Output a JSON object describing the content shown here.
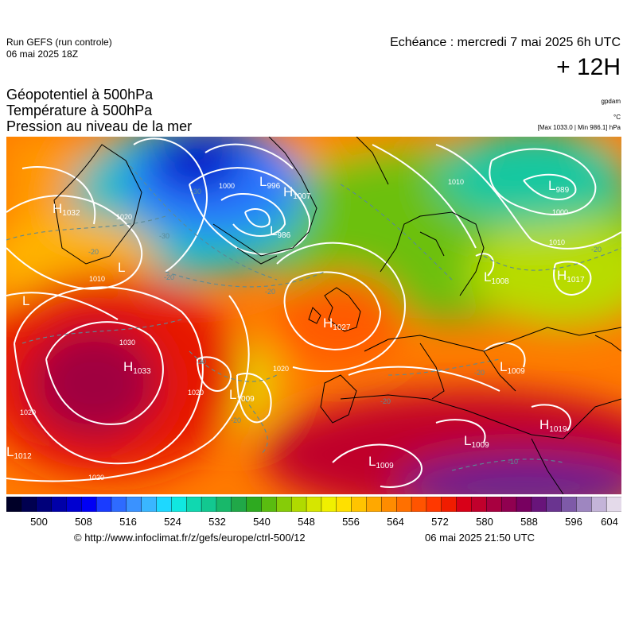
{
  "header": {
    "run_name": "Run GEFS (run controle)",
    "run_date": "06 mai 2025 18Z",
    "echeance": "Echéance : mercredi 7 mai 2025 6h UTC",
    "lead_time": "+ 12H"
  },
  "titles": {
    "line1": "Géopotentiel à 500hPa",
    "line2": "Température à 500hPa",
    "line3": "Pression au niveau de la mer"
  },
  "units": {
    "geopotential": "gpdam",
    "temperature": "°C",
    "pressure": "[Max 1033.0 | Min 986.1] hPa"
  },
  "colors": {
    "palette": [
      "#000028",
      "#000050",
      "#00007a",
      "#0000a8",
      "#0000d0",
      "#0000f5",
      "#1a3cff",
      "#2e6bff",
      "#3a92ff",
      "#3ab6ff",
      "#1ed8ff",
      "#10e8e0",
      "#10d8b0",
      "#12c890",
      "#18b86a",
      "#20a848",
      "#2eaa20",
      "#5abc10",
      "#86cc08",
      "#b0da00",
      "#d6e600",
      "#f0f000",
      "#ffe000",
      "#ffc400",
      "#ffa800",
      "#ff8c00",
      "#ff7000",
      "#ff5400",
      "#ff3800",
      "#f01c00",
      "#d80018",
      "#c0002c",
      "#a80040",
      "#900050",
      "#780060",
      "#68147a",
      "#6a3490",
      "#7e5aa8",
      "#9e86c0",
      "#c4b4d8",
      "#e4daea"
    ],
    "isobar": "#ffffff",
    "isotherm": "#5a8a96"
  },
  "colorbar": {
    "tick_labels": [
      "500",
      "508",
      "516",
      "524",
      "532",
      "540",
      "548",
      "556",
      "564",
      "572",
      "580",
      "588",
      "596",
      "604"
    ]
  },
  "map": {
    "pressure_centers": [
      {
        "type": "H",
        "value": "1032"
      },
      {
        "type": "L",
        "value": "996"
      },
      {
        "type": "H",
        "value": "1007"
      },
      {
        "type": "L",
        "value": "986"
      },
      {
        "type": "L",
        "value": "989"
      },
      {
        "type": "L",
        "value": ""
      },
      {
        "type": "L",
        "value": ""
      },
      {
        "type": "L",
        "value": "1008"
      },
      {
        "type": "H",
        "value": "1017"
      },
      {
        "type": "H",
        "value": "1027"
      },
      {
        "type": "H",
        "value": "1033"
      },
      {
        "type": "L",
        "value": "1009"
      },
      {
        "type": "L",
        "value": "1009"
      },
      {
        "type": "L",
        "value": "1012"
      },
      {
        "type": "L",
        "value": "1009"
      },
      {
        "type": "L",
        "value": "1009"
      },
      {
        "type": "H",
        "value": "1019"
      }
    ],
    "isobar_labels": [
      "1020",
      "1000",
      "1010",
      "1010",
      "1000",
      "1010",
      "1030",
      "1020",
      "1020",
      "1020",
      "1020"
    ],
    "isotherm_labels": [
      "-30",
      "-20",
      "-20",
      "-20",
      "-30",
      "-20",
      "-20",
      "-20",
      "-20",
      "-20",
      "-10"
    ]
  },
  "footer": {
    "copyright": "© http://www.infoclimat.fr/z/gefs/europe/ctrl-500/12",
    "generated": "06 mai 2025 21:50 UTC"
  }
}
